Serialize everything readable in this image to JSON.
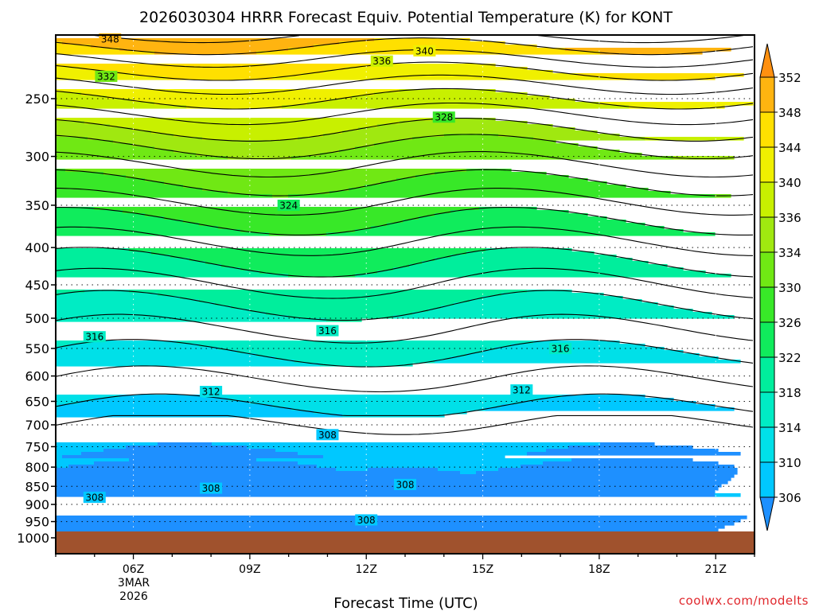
{
  "chart_data": {
    "type": "heatmap",
    "title": "2026030304 HRRR Forecast Equiv. Potential Temperature (K) for KONT",
    "xlabel": "Forecast Time (UTC)",
    "ylabel": "",
    "x_ticks": [
      "06Z",
      "09Z",
      "12Z",
      "15Z",
      "18Z",
      "21Z"
    ],
    "x_tick_values_hours": [
      6,
      9,
      12,
      15,
      18,
      21
    ],
    "x_range_hours": [
      4,
      22
    ],
    "date_label": [
      "3MAR",
      "2026"
    ],
    "y_ticks": [
      250,
      300,
      350,
      400,
      450,
      500,
      550,
      600,
      650,
      700,
      750,
      800,
      850,
      900,
      950,
      1000
    ],
    "y_range_hpa": [
      1000,
      200
    ],
    "y_scale": "log-pressure",
    "colorbar": {
      "levels": [
        306,
        310,
        314,
        318,
        322,
        326,
        330,
        334,
        336,
        340,
        344,
        348,
        352
      ],
      "colors": [
        "#00c8ff",
        "#00e0e8",
        "#00ecc4",
        "#00ee9c",
        "#10ec5c",
        "#38e828",
        "#70e814",
        "#a0e810",
        "#c8f000",
        "#f0f000",
        "#ffe000",
        "#ffb410",
        "#ff9c18"
      ],
      "extend": "both",
      "under_color": "#1e90ff",
      "over_color": "#ff9010"
    },
    "contour_labels": [
      {
        "value": "348",
        "hour": 5.4,
        "hpa": 207
      },
      {
        "value": "340",
        "hour": 13.5,
        "hpa": 215
      },
      {
        "value": "336",
        "hour": 12.4,
        "hpa": 222
      },
      {
        "value": "332",
        "hour": 5.3,
        "hpa": 233
      },
      {
        "value": "328",
        "hour": 14.0,
        "hpa": 265
      },
      {
        "value": "324",
        "hour": 10.0,
        "hpa": 350
      },
      {
        "value": "316",
        "hour": 5.0,
        "hpa": 530
      },
      {
        "value": "316",
        "hour": 11.0,
        "hpa": 520
      },
      {
        "value": "316",
        "hour": 17.0,
        "hpa": 550
      },
      {
        "value": "312",
        "hour": 8.0,
        "hpa": 630
      },
      {
        "value": "312",
        "hour": 16.0,
        "hpa": 627
      },
      {
        "value": "308",
        "hour": 11.0,
        "hpa": 722
      },
      {
        "value": "308",
        "hour": 8.0,
        "hpa": 855
      },
      {
        "value": "308",
        "hour": 13.0,
        "hpa": 845
      },
      {
        "value": "308",
        "hour": 5.0,
        "hpa": 880
      },
      {
        "value": "308",
        "hour": 12.0,
        "hpa": 945
      }
    ],
    "ground_color": "#a0522d",
    "credit": "coolwx.com/modelts"
  }
}
